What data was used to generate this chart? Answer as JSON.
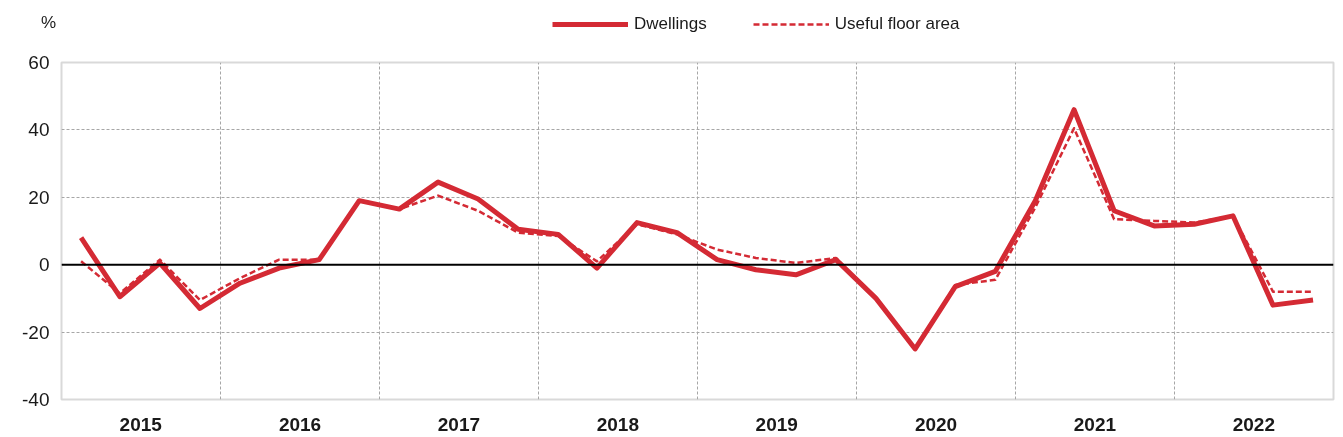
{
  "chart_data": {
    "type": "line",
    "ylabel": "%",
    "legend": "top",
    "grid": true,
    "x": [
      "2015-02-15",
      "2015-05-15",
      "2015-08-15",
      "2015-11-15",
      "2016-02-15",
      "2016-05-15",
      "2016-08-15",
      "2016-11-15",
      "2017-02-15",
      "2017-05-15",
      "2017-08-15",
      "2017-11-15",
      "2018-02-15",
      "2018-05-15",
      "2018-08-15",
      "2018-11-15",
      "2019-02-15",
      "2019-05-15",
      "2019-08-15",
      "2019-11-15",
      "2020-02-15",
      "2020-05-15",
      "2020-08-15",
      "2020-11-15",
      "2021-02-15",
      "2021-05-15",
      "2021-08-15",
      "2021-11-15",
      "2022-02-15",
      "2022-05-15",
      "2022-08-15",
      "2022-11-15"
    ],
    "series": [
      {
        "name": "Dwellings",
        "color": "#d42a34",
        "line_style": "solid",
        "values": [
          8,
          -9.5,
          0.5,
          -13,
          -5.5,
          -1,
          1.5,
          19,
          16.5,
          24.5,
          19.5,
          10.5,
          9,
          -1,
          12.5,
          9.5,
          1.5,
          -1.5,
          -3,
          1.5,
          -10,
          -25,
          -6.5,
          -2,
          19,
          46,
          16,
          11.5,
          12,
          14.5,
          -12,
          -10.5
        ]
      },
      {
        "name": "Useful floor area",
        "color": "#d42a34",
        "line_style": "dashed",
        "values": [
          1,
          -8.5,
          1.5,
          -10.5,
          -4,
          1.5,
          1.5,
          19,
          16.5,
          20.5,
          16,
          9.5,
          8.5,
          1,
          12,
          9,
          4.5,
          2,
          0.5,
          2,
          -10,
          -25,
          -6,
          -4.5,
          17,
          40.5,
          13.5,
          13,
          12.5,
          14.5,
          -8,
          -8
        ]
      }
    ],
    "xlim": [
      "2015-01-01",
      "2023-01-01"
    ],
    "xticks": [
      {
        "value": "2015-07-02",
        "label": "2015"
      },
      {
        "value": "2016-01-01",
        "label": null
      },
      {
        "value": "2016-07-02",
        "label": "2016"
      },
      {
        "value": "2017-01-01",
        "label": null
      },
      {
        "value": "2017-07-02",
        "label": "2017"
      },
      {
        "value": "2018-01-01",
        "label": null
      },
      {
        "value": "2018-07-02",
        "label": "2018"
      },
      {
        "value": "2019-01-01",
        "label": null
      },
      {
        "value": "2019-07-02",
        "label": "2019"
      },
      {
        "value": "2020-01-01",
        "label": null
      },
      {
        "value": "2020-07-02",
        "label": "2020"
      },
      {
        "value": "2021-01-01",
        "label": null
      },
      {
        "value": "2021-07-02",
        "label": "2021"
      },
      {
        "value": "2022-01-01",
        "label": null
      },
      {
        "value": "2022-07-02",
        "label": "2022"
      }
    ],
    "ylim": [
      -40,
      60
    ],
    "yticks": [
      -40,
      -20,
      0,
      20,
      40,
      60
    ],
    "ref_lines": [
      {
        "axis": "y",
        "value": 0,
        "color": "#000000"
      }
    ]
  }
}
